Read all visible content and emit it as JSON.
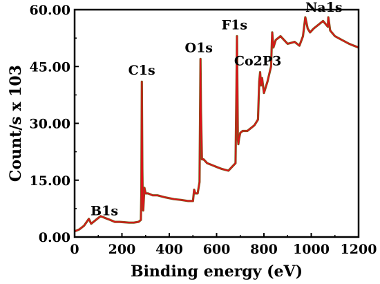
{
  "chart_data": {
    "type": "line",
    "title": "",
    "xlabel": "Binding energy (eV)",
    "ylabel": "Count/s x 103",
    "xlim": [
      0,
      1200
    ],
    "ylim": [
      0,
      60
    ],
    "x_ticks": [
      "0",
      "200",
      "400",
      "600",
      "800",
      "1000",
      "1200"
    ],
    "y_ticks": [
      "0.00",
      "15.00",
      "30.00",
      "45.00",
      "60.00"
    ],
    "grid": false,
    "series": [
      {
        "color": "#e0101a",
        "shadow_color": "#7a5a1a",
        "x": [
          0,
          20,
          40,
          60,
          70,
          90,
          110,
          130,
          150,
          170,
          190,
          210,
          230,
          250,
          270,
          280,
          282,
          284,
          286,
          288,
          290,
          295,
          300,
          310,
          330,
          350,
          380,
          420,
          450,
          480,
          500,
          505,
          510,
          520,
          528,
          530,
          532,
          534,
          538,
          545,
          560,
          580,
          600,
          620,
          650,
          680,
          684,
          686,
          688,
          690,
          692,
          695,
          700,
          710,
          730,
          760,
          775,
          780,
          784,
          788,
          792,
          800,
          815,
          830,
          835,
          840,
          850,
          870,
          900,
          930,
          950,
          965,
          975,
          985,
          995,
          1010,
          1030,
          1050,
          1070,
          1072,
          1080,
          1100,
          1130,
          1160,
          1180,
          1200
        ],
        "y": [
          1.5,
          2.0,
          3.0,
          4.8,
          3.5,
          4.5,
          5.5,
          5.0,
          4.5,
          4.0,
          4.0,
          3.9,
          3.8,
          3.8,
          4.0,
          4.5,
          12.0,
          41.0,
          18.0,
          10.0,
          7.0,
          13.0,
          11.5,
          11.5,
          11.0,
          11.0,
          10.5,
          10.0,
          9.8,
          9.5,
          9.5,
          12.5,
          11.5,
          11.5,
          14.5,
          30.0,
          47.0,
          33.0,
          20.5,
          20.5,
          19.5,
          19.0,
          18.5,
          18.0,
          17.5,
          19.5,
          40.0,
          53.0,
          40.0,
          26.0,
          24.5,
          26.0,
          27.5,
          28.0,
          28.0,
          29.5,
          31.0,
          41.0,
          43.5,
          40.0,
          42.0,
          38.0,
          41.0,
          45.0,
          54.0,
          50.0,
          52.0,
          53.0,
          51.0,
          51.5,
          50.5,
          53.0,
          58.0,
          55.0,
          54.0,
          55.0,
          56.0,
          57.0,
          55.5,
          58.0,
          54.5,
          53.0,
          52.0,
          51.0,
          50.5,
          50.0
        ]
      }
    ],
    "annotations": [
      {
        "text": "B1s",
        "x": 190,
        "y": 5
      },
      {
        "text": "C1s",
        "x": 285,
        "y": 41
      },
      {
        "text": "O1s",
        "x": 530,
        "y": 47
      },
      {
        "text": "F1s",
        "x": 685,
        "y": 53
      },
      {
        "text": "Co2P3",
        "x": 785,
        "y": 43.5
      },
      {
        "text": "Na1s",
        "x": 975,
        "y": 58
      }
    ]
  }
}
